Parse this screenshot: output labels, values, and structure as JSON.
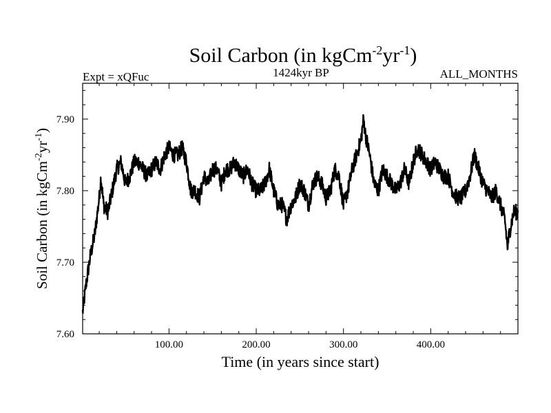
{
  "chart_data": {
    "type": "line",
    "title_main": "Soil Carbon (in kgCm",
    "title_sup1": "-2",
    "title_mid": "yr",
    "title_sup2": "-1",
    "title_end": ")",
    "subtitle_left": "Expt = xQFuc",
    "subtitle_center": "1424kyr BP",
    "subtitle_right": "ALL_MONTHS",
    "xlabel": "Time (in years since start)",
    "ylabel_main": "Soil Carbon (in kgCm",
    "ylabel_sup1": "-2",
    "ylabel_mid": "yr",
    "ylabel_sup2": "-1",
    "ylabel_end": ")",
    "xlim": [
      1,
      500
    ],
    "ylim": [
      7.6,
      7.95
    ],
    "xticks": [
      100,
      200,
      300,
      400
    ],
    "xtick_labels": [
      "100.00",
      "200.00",
      "300.00",
      "400.00"
    ],
    "yticks": [
      7.6,
      7.7,
      7.8,
      7.9
    ],
    "ytick_labels": [
      "7.60",
      "7.70",
      "7.80",
      "7.90"
    ],
    "series": [
      {
        "name": "Soil Carbon",
        "color": "#000000",
        "x": [
          1,
          5,
          10,
          15,
          20,
          22,
          25,
          30,
          35,
          40,
          45,
          50,
          55,
          60,
          65,
          70,
          75,
          80,
          85,
          90,
          95,
          100,
          105,
          110,
          115,
          120,
          125,
          130,
          135,
          140,
          145,
          150,
          155,
          160,
          165,
          170,
          175,
          180,
          185,
          190,
          195,
          200,
          205,
          210,
          215,
          220,
          225,
          230,
          235,
          240,
          245,
          250,
          255,
          260,
          265,
          270,
          275,
          280,
          285,
          290,
          295,
          300,
          305,
          310,
          315,
          320,
          323,
          325,
          330,
          335,
          340,
          345,
          350,
          355,
          360,
          365,
          370,
          375,
          380,
          385,
          390,
          395,
          400,
          405,
          410,
          415,
          420,
          425,
          430,
          435,
          440,
          445,
          450,
          455,
          460,
          465,
          470,
          475,
          480,
          485,
          488,
          490,
          495,
          500
        ],
        "y": [
          7.63,
          7.67,
          7.71,
          7.74,
          7.79,
          7.82,
          7.78,
          7.77,
          7.8,
          7.83,
          7.84,
          7.81,
          7.82,
          7.84,
          7.84,
          7.83,
          7.82,
          7.83,
          7.84,
          7.83,
          7.85,
          7.86,
          7.85,
          7.85,
          7.86,
          7.84,
          7.8,
          7.8,
          7.79,
          7.82,
          7.81,
          7.83,
          7.83,
          7.81,
          7.83,
          7.83,
          7.84,
          7.83,
          7.82,
          7.83,
          7.81,
          7.8,
          7.8,
          7.81,
          7.83,
          7.8,
          7.78,
          7.78,
          7.76,
          7.78,
          7.79,
          7.81,
          7.8,
          7.78,
          7.81,
          7.82,
          7.81,
          7.79,
          7.8,
          7.83,
          7.82,
          7.78,
          7.8,
          7.83,
          7.85,
          7.87,
          7.9,
          7.88,
          7.85,
          7.81,
          7.8,
          7.83,
          7.82,
          7.81,
          7.8,
          7.81,
          7.83,
          7.81,
          7.84,
          7.86,
          7.85,
          7.84,
          7.83,
          7.84,
          7.83,
          7.82,
          7.82,
          7.8,
          7.79,
          7.79,
          7.8,
          7.82,
          7.85,
          7.83,
          7.81,
          7.8,
          7.79,
          7.8,
          7.78,
          7.76,
          7.72,
          7.74,
          7.77,
          7.77
        ]
      }
    ]
  }
}
